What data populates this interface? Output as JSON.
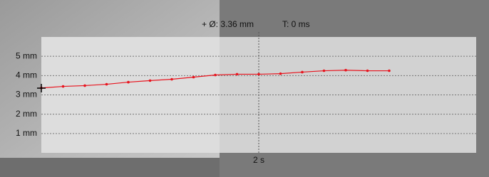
{
  "chart_data": {
    "type": "line",
    "annotations": [
      "+  Ø: 3.36 mm",
      "T: 0 ms"
    ],
    "x": [
      0,
      0.2,
      0.4,
      0.6,
      0.8,
      1.0,
      1.2,
      1.4,
      1.6,
      1.8,
      2.0,
      2.2,
      2.4,
      2.6,
      2.8,
      3.0,
      3.2
    ],
    "series": [
      {
        "color": "#e8141e",
        "values": [
          3.36,
          3.44,
          3.48,
          3.55,
          3.66,
          3.74,
          3.81,
          3.92,
          4.03,
          4.07,
          4.07,
          4.1,
          4.18,
          4.25,
          4.28,
          4.25,
          4.25
        ]
      }
    ],
    "xlim": [
      0,
      4
    ],
    "xticks": [
      {
        "value": 2,
        "label": "2 s"
      }
    ],
    "ylim": [
      0,
      6
    ],
    "yticks": [
      {
        "value": 1,
        "label": "1 mm"
      },
      {
        "value": 2,
        "label": "2 mm"
      },
      {
        "value": 3,
        "label": "3 mm"
      },
      {
        "value": 4,
        "label": "4 mm"
      },
      {
        "value": 5,
        "label": "5 mm"
      }
    ],
    "grid": true
  }
}
